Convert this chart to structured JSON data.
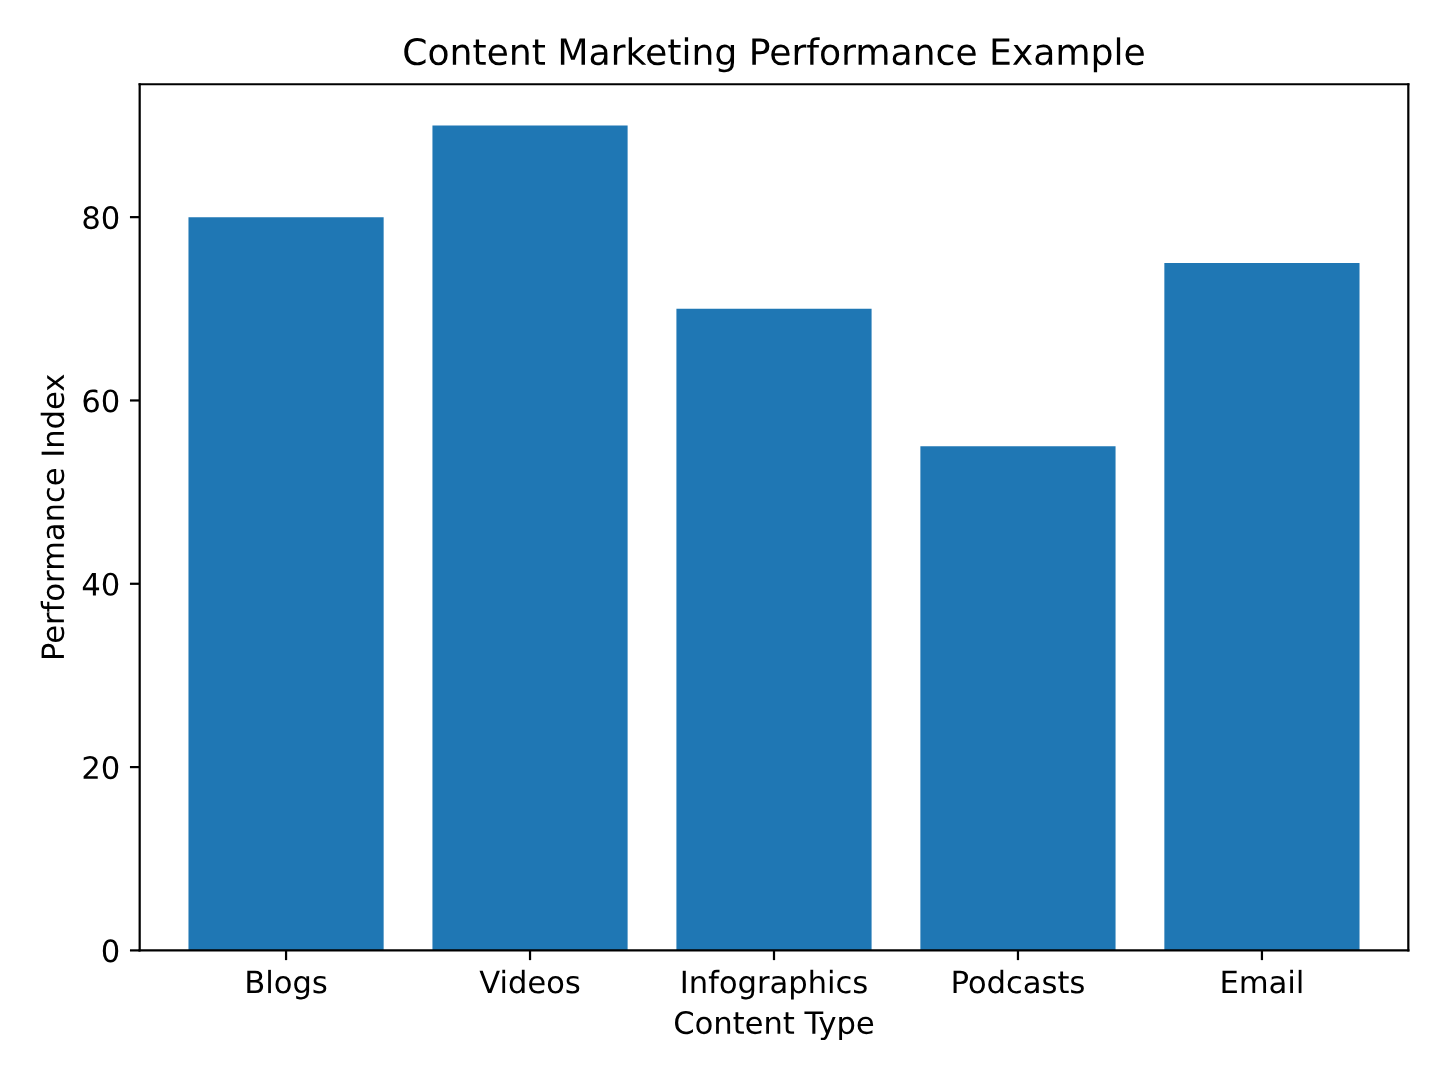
{
  "chart_data": {
    "type": "bar",
    "title": "Content Marketing Performance Example",
    "xlabel": "Content Type",
    "ylabel": "Performance Index",
    "categories": [
      "Blogs",
      "Videos",
      "Infographics",
      "Podcasts",
      "Email"
    ],
    "values": [
      80,
      90,
      70,
      55,
      75
    ],
    "color": "#1f77b4",
    "ylim": [
      0,
      94.5
    ],
    "yticks": [
      0,
      20,
      40,
      60,
      80
    ],
    "grid": false,
    "legend": false
  }
}
